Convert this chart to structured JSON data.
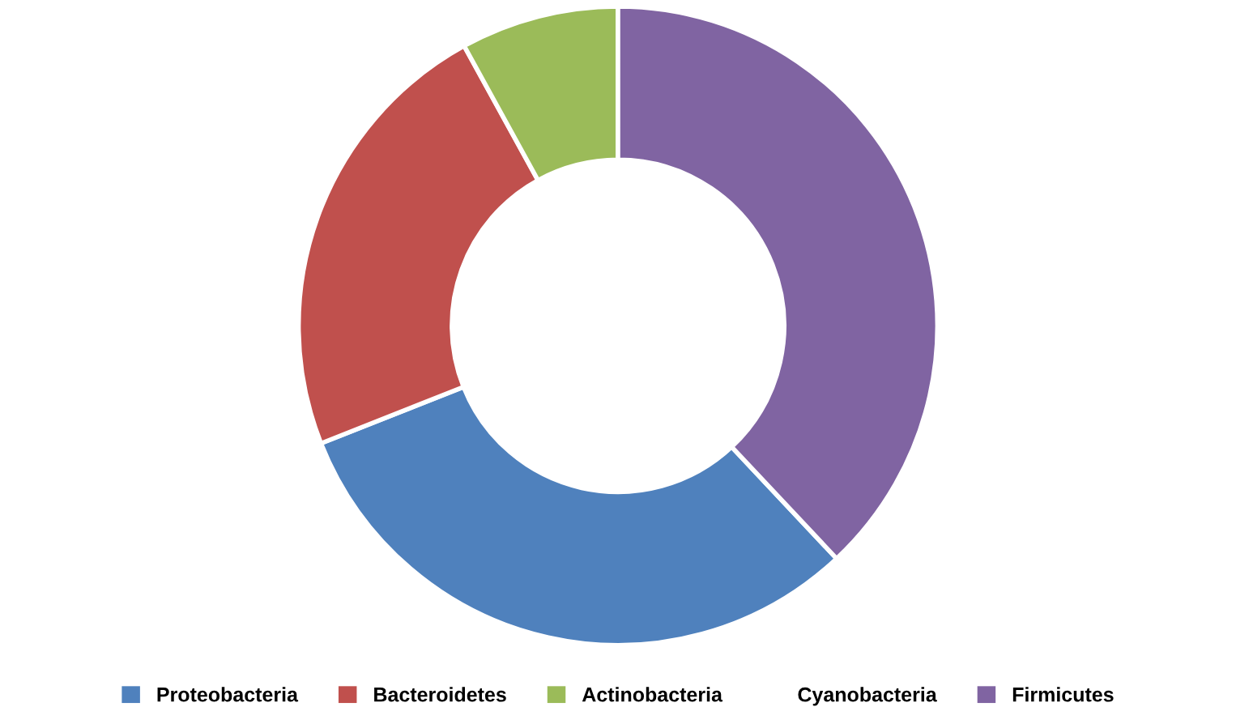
{
  "chart_data": {
    "type": "donut",
    "categories": [
      "Proteobacteria",
      "Bacteroidetes",
      "Actinobacteria",
      "Cyanobacteria",
      "Firmicutes"
    ],
    "values": [
      31,
      23,
      8,
      0,
      38
    ],
    "colors": [
      "#4f81bd",
      "#c0504d",
      "#9bbb59",
      null,
      "#8064a2"
    ],
    "legend": "bottom"
  }
}
